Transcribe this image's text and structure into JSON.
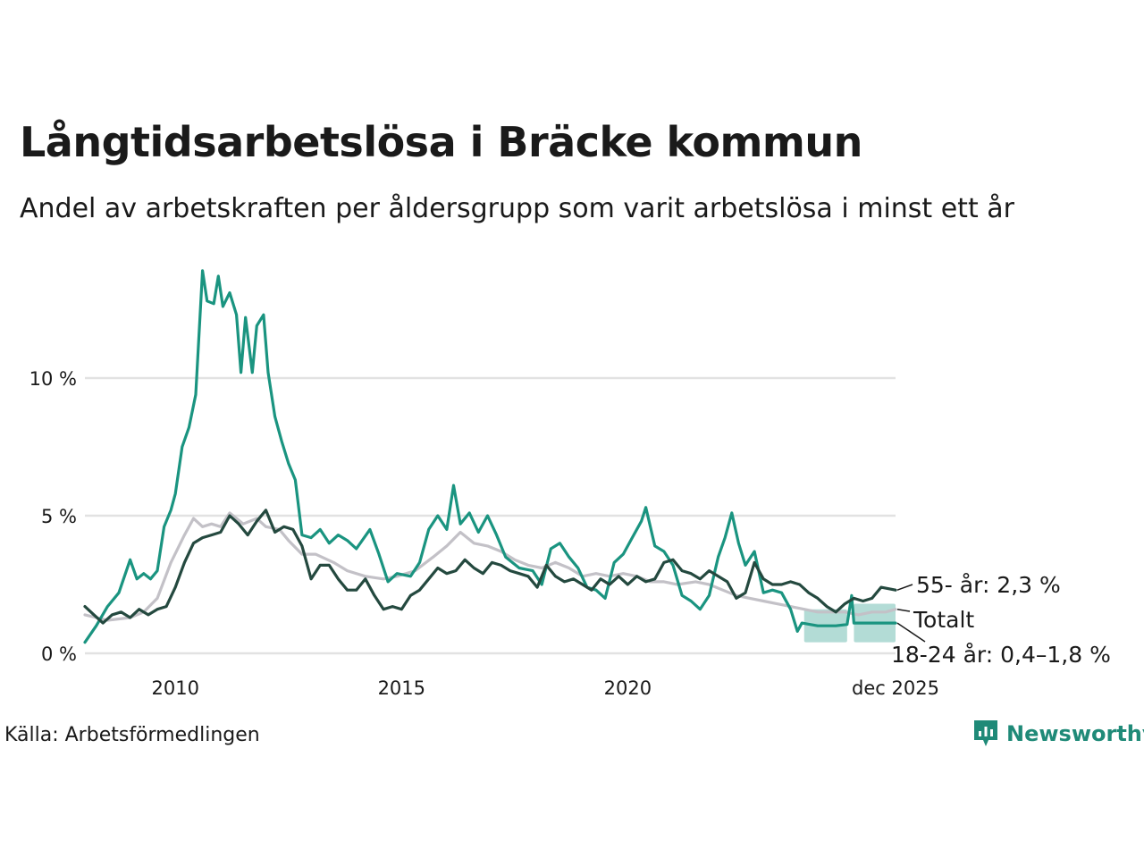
{
  "header": {
    "title": "Långtidsarbetslösa i Bräcke kommun",
    "subtitle": "Andel av arbetskraften per åldersgrupp som varit arbetslösa i minst ett år"
  },
  "footer": {
    "source": "Källa: Arbetsförmedlingen",
    "brand": "Newsworthy",
    "brand_color": "#1f8a78"
  },
  "chart_data": {
    "type": "line",
    "title": "Långtidsarbetslösa i Bräcke kommun",
    "xlabel": "",
    "ylabel": "",
    "xlim": [
      2008.0,
      2025.92
    ],
    "ylim": [
      0,
      14
    ],
    "y_ticks": [
      {
        "value": 0,
        "label": "0 %"
      },
      {
        "value": 5,
        "label": "5 %"
      },
      {
        "value": 10,
        "label": "10 %"
      }
    ],
    "x_ticks": [
      {
        "value": 2010,
        "label": "2010"
      },
      {
        "value": 2015,
        "label": "2015"
      },
      {
        "value": 2020,
        "label": "2020"
      },
      {
        "value": 2025.92,
        "label": "dec 2025"
      }
    ],
    "grid": true,
    "series": [
      {
        "name": "Totalt",
        "label": "Totalt",
        "color": "#c3c1c7",
        "points": [
          [
            2008.0,
            1.4
          ],
          [
            2008.5,
            1.2
          ],
          [
            2009.0,
            1.3
          ],
          [
            2009.3,
            1.5
          ],
          [
            2009.6,
            2.0
          ],
          [
            2009.9,
            3.3
          ],
          [
            2010.2,
            4.3
          ],
          [
            2010.4,
            4.9
          ],
          [
            2010.6,
            4.6
          ],
          [
            2010.8,
            4.7
          ],
          [
            2011.0,
            4.6
          ],
          [
            2011.2,
            5.1
          ],
          [
            2011.5,
            4.7
          ],
          [
            2011.8,
            4.9
          ],
          [
            2012.0,
            4.6
          ],
          [
            2012.3,
            4.5
          ],
          [
            2012.5,
            4.1
          ],
          [
            2012.8,
            3.6
          ],
          [
            2013.1,
            3.6
          ],
          [
            2013.5,
            3.3
          ],
          [
            2013.8,
            3.0
          ],
          [
            2014.2,
            2.8
          ],
          [
            2014.6,
            2.7
          ],
          [
            2014.9,
            2.8
          ],
          [
            2015.3,
            3.0
          ],
          [
            2015.7,
            3.5
          ],
          [
            2016.0,
            3.9
          ],
          [
            2016.3,
            4.4
          ],
          [
            2016.6,
            4.0
          ],
          [
            2016.9,
            3.9
          ],
          [
            2017.2,
            3.7
          ],
          [
            2017.5,
            3.4
          ],
          [
            2017.8,
            3.2
          ],
          [
            2018.1,
            3.1
          ],
          [
            2018.4,
            3.3
          ],
          [
            2018.7,
            3.1
          ],
          [
            2019.0,
            2.8
          ],
          [
            2019.3,
            2.9
          ],
          [
            2019.6,
            2.8
          ],
          [
            2019.9,
            2.9
          ],
          [
            2020.2,
            2.8
          ],
          [
            2020.5,
            2.6
          ],
          [
            2020.8,
            2.6
          ],
          [
            2021.1,
            2.5
          ],
          [
            2021.5,
            2.6
          ],
          [
            2021.8,
            2.5
          ],
          [
            2022.1,
            2.3
          ],
          [
            2022.4,
            2.1
          ],
          [
            2022.7,
            2.0
          ],
          [
            2023.0,
            1.9
          ],
          [
            2023.3,
            1.8
          ],
          [
            2023.6,
            1.7
          ],
          [
            2023.9,
            1.6
          ],
          [
            2024.2,
            1.5
          ],
          [
            2024.5,
            1.5
          ],
          [
            2024.8,
            1.5
          ],
          [
            2025.1,
            1.4
          ],
          [
            2025.4,
            1.5
          ],
          [
            2025.7,
            1.5
          ],
          [
            2025.92,
            1.6
          ]
        ]
      },
      {
        "name": "18-24 år",
        "label": "18-24 år: 0,4–1,8 %",
        "color": "#1a9480",
        "band_color": "#a6d6cf",
        "points": [
          [
            2008.0,
            0.4
          ],
          [
            2008.25,
            1.0
          ],
          [
            2008.5,
            1.7
          ],
          [
            2008.75,
            2.2
          ],
          [
            2009.0,
            3.4
          ],
          [
            2009.15,
            2.7
          ],
          [
            2009.3,
            2.9
          ],
          [
            2009.45,
            2.7
          ],
          [
            2009.6,
            3.0
          ],
          [
            2009.75,
            4.6
          ],
          [
            2009.9,
            5.2
          ],
          [
            2010.0,
            5.8
          ],
          [
            2010.15,
            7.5
          ],
          [
            2010.3,
            8.2
          ],
          [
            2010.45,
            9.4
          ],
          [
            2010.6,
            13.9
          ],
          [
            2010.7,
            12.8
          ],
          [
            2010.85,
            12.7
          ],
          [
            2010.95,
            13.7
          ],
          [
            2011.05,
            12.6
          ],
          [
            2011.2,
            13.1
          ],
          [
            2011.35,
            12.3
          ],
          [
            2011.45,
            10.2
          ],
          [
            2011.55,
            12.2
          ],
          [
            2011.7,
            10.2
          ],
          [
            2011.8,
            11.9
          ],
          [
            2011.95,
            12.3
          ],
          [
            2012.05,
            10.2
          ],
          [
            2012.2,
            8.6
          ],
          [
            2012.35,
            7.7
          ],
          [
            2012.5,
            6.9
          ],
          [
            2012.65,
            6.3
          ],
          [
            2012.8,
            4.3
          ],
          [
            2013.0,
            4.2
          ],
          [
            2013.2,
            4.5
          ],
          [
            2013.4,
            4.0
          ],
          [
            2013.6,
            4.3
          ],
          [
            2013.8,
            4.1
          ],
          [
            2014.0,
            3.8
          ],
          [
            2014.3,
            4.5
          ],
          [
            2014.5,
            3.6
          ],
          [
            2014.7,
            2.6
          ],
          [
            2014.9,
            2.9
          ],
          [
            2015.2,
            2.8
          ],
          [
            2015.4,
            3.3
          ],
          [
            2015.6,
            4.5
          ],
          [
            2015.8,
            5.0
          ],
          [
            2016.0,
            4.5
          ],
          [
            2016.15,
            6.1
          ],
          [
            2016.3,
            4.7
          ],
          [
            2016.5,
            5.1
          ],
          [
            2016.7,
            4.4
          ],
          [
            2016.9,
            5.0
          ],
          [
            2017.1,
            4.3
          ],
          [
            2017.3,
            3.5
          ],
          [
            2017.6,
            3.1
          ],
          [
            2017.9,
            3.0
          ],
          [
            2018.1,
            2.5
          ],
          [
            2018.3,
            3.8
          ],
          [
            2018.5,
            4.0
          ],
          [
            2018.7,
            3.5
          ],
          [
            2018.9,
            3.1
          ],
          [
            2019.1,
            2.4
          ],
          [
            2019.3,
            2.3
          ],
          [
            2019.5,
            2.0
          ],
          [
            2019.7,
            3.3
          ],
          [
            2019.9,
            3.6
          ],
          [
            2020.1,
            4.2
          ],
          [
            2020.3,
            4.8
          ],
          [
            2020.4,
            5.3
          ],
          [
            2020.6,
            3.9
          ],
          [
            2020.8,
            3.7
          ],
          [
            2021.0,
            3.2
          ],
          [
            2021.2,
            2.1
          ],
          [
            2021.4,
            1.9
          ],
          [
            2021.6,
            1.6
          ],
          [
            2021.8,
            2.1
          ],
          [
            2022.0,
            3.5
          ],
          [
            2022.15,
            4.2
          ],
          [
            2022.3,
            5.1
          ],
          [
            2022.45,
            4.0
          ],
          [
            2022.6,
            3.2
          ],
          [
            2022.8,
            3.7
          ],
          [
            2023.0,
            2.2
          ],
          [
            2023.2,
            2.3
          ],
          [
            2023.4,
            2.2
          ],
          [
            2023.6,
            1.6
          ],
          [
            2023.75,
            0.8
          ],
          [
            2023.85,
            1.1
          ],
          [
            2024.2,
            1.0
          ],
          [
            2024.6,
            1.0
          ],
          [
            2024.85,
            1.05
          ],
          [
            2024.95,
            2.1
          ],
          [
            2025.0,
            1.1
          ],
          [
            2025.4,
            1.1
          ],
          [
            2025.92,
            1.1
          ]
        ],
        "band": [
          {
            "x_from": 2023.9,
            "x_to": 2024.85,
            "low": 0.4,
            "high": 1.6
          },
          {
            "x_from": 2025.0,
            "x_to": 2025.92,
            "low": 0.4,
            "high": 1.8
          }
        ]
      },
      {
        "name": "55- år",
        "label": "55- år: 2,3 %",
        "color": "#24493f",
        "points": [
          [
            2008.0,
            1.7
          ],
          [
            2008.2,
            1.4
          ],
          [
            2008.4,
            1.1
          ],
          [
            2008.6,
            1.4
          ],
          [
            2008.8,
            1.5
          ],
          [
            2009.0,
            1.3
          ],
          [
            2009.2,
            1.6
          ],
          [
            2009.4,
            1.4
          ],
          [
            2009.6,
            1.6
          ],
          [
            2009.8,
            1.7
          ],
          [
            2010.0,
            2.4
          ],
          [
            2010.2,
            3.3
          ],
          [
            2010.4,
            4.0
          ],
          [
            2010.6,
            4.2
          ],
          [
            2010.8,
            4.3
          ],
          [
            2011.0,
            4.4
          ],
          [
            2011.2,
            5.0
          ],
          [
            2011.4,
            4.7
          ],
          [
            2011.6,
            4.3
          ],
          [
            2011.8,
            4.8
          ],
          [
            2012.0,
            5.2
          ],
          [
            2012.2,
            4.4
          ],
          [
            2012.4,
            4.6
          ],
          [
            2012.6,
            4.5
          ],
          [
            2012.8,
            3.9
          ],
          [
            2013.0,
            2.7
          ],
          [
            2013.2,
            3.2
          ],
          [
            2013.4,
            3.2
          ],
          [
            2013.6,
            2.7
          ],
          [
            2013.8,
            2.3
          ],
          [
            2014.0,
            2.3
          ],
          [
            2014.2,
            2.7
          ],
          [
            2014.4,
            2.1
          ],
          [
            2014.6,
            1.6
          ],
          [
            2014.8,
            1.7
          ],
          [
            2015.0,
            1.6
          ],
          [
            2015.2,
            2.1
          ],
          [
            2015.4,
            2.3
          ],
          [
            2015.6,
            2.7
          ],
          [
            2015.8,
            3.1
          ],
          [
            2016.0,
            2.9
          ],
          [
            2016.2,
            3.0
          ],
          [
            2016.4,
            3.4
          ],
          [
            2016.6,
            3.1
          ],
          [
            2016.8,
            2.9
          ],
          [
            2017.0,
            3.3
          ],
          [
            2017.2,
            3.2
          ],
          [
            2017.4,
            3.0
          ],
          [
            2017.6,
            2.9
          ],
          [
            2017.8,
            2.8
          ],
          [
            2018.0,
            2.4
          ],
          [
            2018.2,
            3.2
          ],
          [
            2018.4,
            2.8
          ],
          [
            2018.6,
            2.6
          ],
          [
            2018.8,
            2.7
          ],
          [
            2019.0,
            2.5
          ],
          [
            2019.2,
            2.3
          ],
          [
            2019.4,
            2.7
          ],
          [
            2019.6,
            2.5
          ],
          [
            2019.8,
            2.8
          ],
          [
            2020.0,
            2.5
          ],
          [
            2020.2,
            2.8
          ],
          [
            2020.4,
            2.6
          ],
          [
            2020.6,
            2.7
          ],
          [
            2020.8,
            3.3
          ],
          [
            2021.0,
            3.4
          ],
          [
            2021.2,
            3.0
          ],
          [
            2021.4,
            2.9
          ],
          [
            2021.6,
            2.7
          ],
          [
            2021.8,
            3.0
          ],
          [
            2022.0,
            2.8
          ],
          [
            2022.2,
            2.6
          ],
          [
            2022.4,
            2.0
          ],
          [
            2022.6,
            2.2
          ],
          [
            2022.8,
            3.3
          ],
          [
            2023.0,
            2.7
          ],
          [
            2023.2,
            2.5
          ],
          [
            2023.4,
            2.5
          ],
          [
            2023.6,
            2.6
          ],
          [
            2023.8,
            2.5
          ],
          [
            2024.0,
            2.2
          ],
          [
            2024.2,
            2.0
          ],
          [
            2024.4,
            1.7
          ],
          [
            2024.6,
            1.5
          ],
          [
            2024.8,
            1.8
          ],
          [
            2025.0,
            2.0
          ],
          [
            2025.2,
            1.9
          ],
          [
            2025.4,
            2.0
          ],
          [
            2025.6,
            2.4
          ],
          [
            2025.92,
            2.3
          ]
        ]
      }
    ]
  }
}
